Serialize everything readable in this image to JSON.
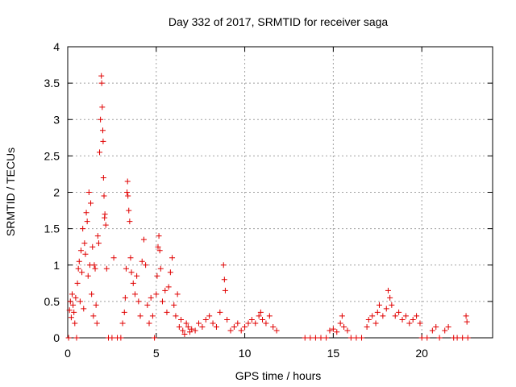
{
  "chart_data": {
    "type": "scatter",
    "title": "Day 332 of 2017, SRMTID for receiver saga",
    "xlabel": "GPS time / hours",
    "ylabel": "SRMTID / TECUs",
    "xlim": [
      0,
      24
    ],
    "ylim": [
      0,
      4
    ],
    "xticks": [
      0,
      5,
      10,
      15,
      20
    ],
    "xtick_labels": [
      "0",
      "5",
      "10",
      "15",
      "20"
    ],
    "yticks": [
      0,
      0.5,
      1,
      1.5,
      2,
      2.5,
      3,
      3.5,
      4
    ],
    "ytick_labels": [
      "0",
      "0.5",
      "1",
      "1.5",
      "2",
      "2.5",
      "3",
      "3.5",
      "4"
    ],
    "grid": true,
    "marker": "+",
    "color": "#e00000",
    "series": [
      {
        "name": "SRMTID",
        "points": [
          [
            0.05,
            0.0
          ],
          [
            0.1,
            0.38
          ],
          [
            0.15,
            0.5
          ],
          [
            0.2,
            0.28
          ],
          [
            0.25,
            0.6
          ],
          [
            0.3,
            0.45
          ],
          [
            0.35,
            0.35
          ],
          [
            0.4,
            0.2
          ],
          [
            0.45,
            0.55
          ],
          [
            0.5,
            0.0
          ],
          [
            0.55,
            0.75
          ],
          [
            0.6,
            0.95
          ],
          [
            0.65,
            1.05
          ],
          [
            0.7,
            0.5
          ],
          [
            0.75,
            1.2
          ],
          [
            0.8,
            0.9
          ],
          [
            0.85,
            1.5
          ],
          [
            0.9,
            0.4
          ],
          [
            0.95,
            1.3
          ],
          [
            1.0,
            1.15
          ],
          [
            1.05,
            1.72
          ],
          [
            1.1,
            1.6
          ],
          [
            1.15,
            0.85
          ],
          [
            1.2,
            2.0
          ],
          [
            1.25,
            1.0
          ],
          [
            1.3,
            1.85
          ],
          [
            1.35,
            0.6
          ],
          [
            1.4,
            1.25
          ],
          [
            1.45,
            0.3
          ],
          [
            1.5,
            1.0
          ],
          [
            1.55,
            0.95
          ],
          [
            1.6,
            0.45
          ],
          [
            1.65,
            0.2
          ],
          [
            1.7,
            1.4
          ],
          [
            1.75,
            1.3
          ],
          [
            1.8,
            2.55
          ],
          [
            1.85,
            3.0
          ],
          [
            1.9,
            3.6
          ],
          [
            1.92,
            3.5
          ],
          [
            1.95,
            3.17
          ],
          [
            1.98,
            2.85
          ],
          [
            2.0,
            2.7
          ],
          [
            2.02,
            2.2
          ],
          [
            2.05,
            1.95
          ],
          [
            2.08,
            1.65
          ],
          [
            2.1,
            1.7
          ],
          [
            2.15,
            1.55
          ],
          [
            2.2,
            0.95
          ],
          [
            2.3,
            0.0
          ],
          [
            2.5,
            0.0
          ],
          [
            2.6,
            1.1
          ],
          [
            2.8,
            0.0
          ],
          [
            3.0,
            0.0
          ],
          [
            3.1,
            0.2
          ],
          [
            3.2,
            0.35
          ],
          [
            3.25,
            0.55
          ],
          [
            3.3,
            0.95
          ],
          [
            3.35,
            2.0
          ],
          [
            3.38,
            2.15
          ],
          [
            3.4,
            1.95
          ],
          [
            3.45,
            1.75
          ],
          [
            3.5,
            1.6
          ],
          [
            3.55,
            1.1
          ],
          [
            3.6,
            0.9
          ],
          [
            3.7,
            0.75
          ],
          [
            3.8,
            0.6
          ],
          [
            3.9,
            0.85
          ],
          [
            4.0,
            0.5
          ],
          [
            4.1,
            0.3
          ],
          [
            4.2,
            1.05
          ],
          [
            4.3,
            1.35
          ],
          [
            4.4,
            1.0
          ],
          [
            4.5,
            0.45
          ],
          [
            4.6,
            0.2
          ],
          [
            4.7,
            0.55
          ],
          [
            4.8,
            0.3
          ],
          [
            4.9,
            0.0
          ],
          [
            5.0,
            0.6
          ],
          [
            5.05,
            0.85
          ],
          [
            5.1,
            1.25
          ],
          [
            5.15,
            1.4
          ],
          [
            5.2,
            1.2
          ],
          [
            5.25,
            0.95
          ],
          [
            5.35,
            0.5
          ],
          [
            5.5,
            0.65
          ],
          [
            5.6,
            0.35
          ],
          [
            5.7,
            0.7
          ],
          [
            5.8,
            0.9
          ],
          [
            5.9,
            1.1
          ],
          [
            6.0,
            0.45
          ],
          [
            6.1,
            0.3
          ],
          [
            6.2,
            0.6
          ],
          [
            6.3,
            0.15
          ],
          [
            6.4,
            0.25
          ],
          [
            6.5,
            0.1
          ],
          [
            6.6,
            0.05
          ],
          [
            6.7,
            0.2
          ],
          [
            6.8,
            0.15
          ],
          [
            6.9,
            0.08
          ],
          [
            7.0,
            0.12
          ],
          [
            7.2,
            0.1
          ],
          [
            7.4,
            0.2
          ],
          [
            7.6,
            0.15
          ],
          [
            7.8,
            0.25
          ],
          [
            8.0,
            0.3
          ],
          [
            8.2,
            0.2
          ],
          [
            8.4,
            0.15
          ],
          [
            8.6,
            0.35
          ],
          [
            8.8,
            1.0
          ],
          [
            8.85,
            0.8
          ],
          [
            8.9,
            0.65
          ],
          [
            9.0,
            0.25
          ],
          [
            9.2,
            0.1
          ],
          [
            9.4,
            0.15
          ],
          [
            9.6,
            0.2
          ],
          [
            9.8,
            0.1
          ],
          [
            10.0,
            0.15
          ],
          [
            10.2,
            0.2
          ],
          [
            10.4,
            0.25
          ],
          [
            10.6,
            0.2
          ],
          [
            10.8,
            0.3
          ],
          [
            10.9,
            0.35
          ],
          [
            11.0,
            0.25
          ],
          [
            11.2,
            0.2
          ],
          [
            11.4,
            0.3
          ],
          [
            11.6,
            0.15
          ],
          [
            11.8,
            0.1
          ],
          [
            13.4,
            0.0
          ],
          [
            13.7,
            0.0
          ],
          [
            14.0,
            0.0
          ],
          [
            14.3,
            0.0
          ],
          [
            14.6,
            0.0
          ],
          [
            14.8,
            0.1
          ],
          [
            15.0,
            0.12
          ],
          [
            15.2,
            0.08
          ],
          [
            15.4,
            0.2
          ],
          [
            15.5,
            0.3
          ],
          [
            15.6,
            0.15
          ],
          [
            15.8,
            0.1
          ],
          [
            16.0,
            0.0
          ],
          [
            16.3,
            0.0
          ],
          [
            16.6,
            0.0
          ],
          [
            16.9,
            0.15
          ],
          [
            17.0,
            0.25
          ],
          [
            17.2,
            0.3
          ],
          [
            17.4,
            0.2
          ],
          [
            17.5,
            0.35
          ],
          [
            17.6,
            0.45
          ],
          [
            17.8,
            0.3
          ],
          [
            18.0,
            0.4
          ],
          [
            18.1,
            0.65
          ],
          [
            18.2,
            0.55
          ],
          [
            18.3,
            0.45
          ],
          [
            18.5,
            0.3
          ],
          [
            18.7,
            0.35
          ],
          [
            18.9,
            0.25
          ],
          [
            19.1,
            0.3
          ],
          [
            19.3,
            0.2
          ],
          [
            19.5,
            0.25
          ],
          [
            19.7,
            0.3
          ],
          [
            19.9,
            0.2
          ],
          [
            20.0,
            0.0
          ],
          [
            20.3,
            0.0
          ],
          [
            20.6,
            0.1
          ],
          [
            20.8,
            0.15
          ],
          [
            21.0,
            0.0
          ],
          [
            21.3,
            0.1
          ],
          [
            21.5,
            0.15
          ],
          [
            21.8,
            0.0
          ],
          [
            22.0,
            0.0
          ],
          [
            22.3,
            0.0
          ],
          [
            22.5,
            0.3
          ],
          [
            22.55,
            0.22
          ],
          [
            22.6,
            0.0
          ]
        ]
      }
    ]
  }
}
